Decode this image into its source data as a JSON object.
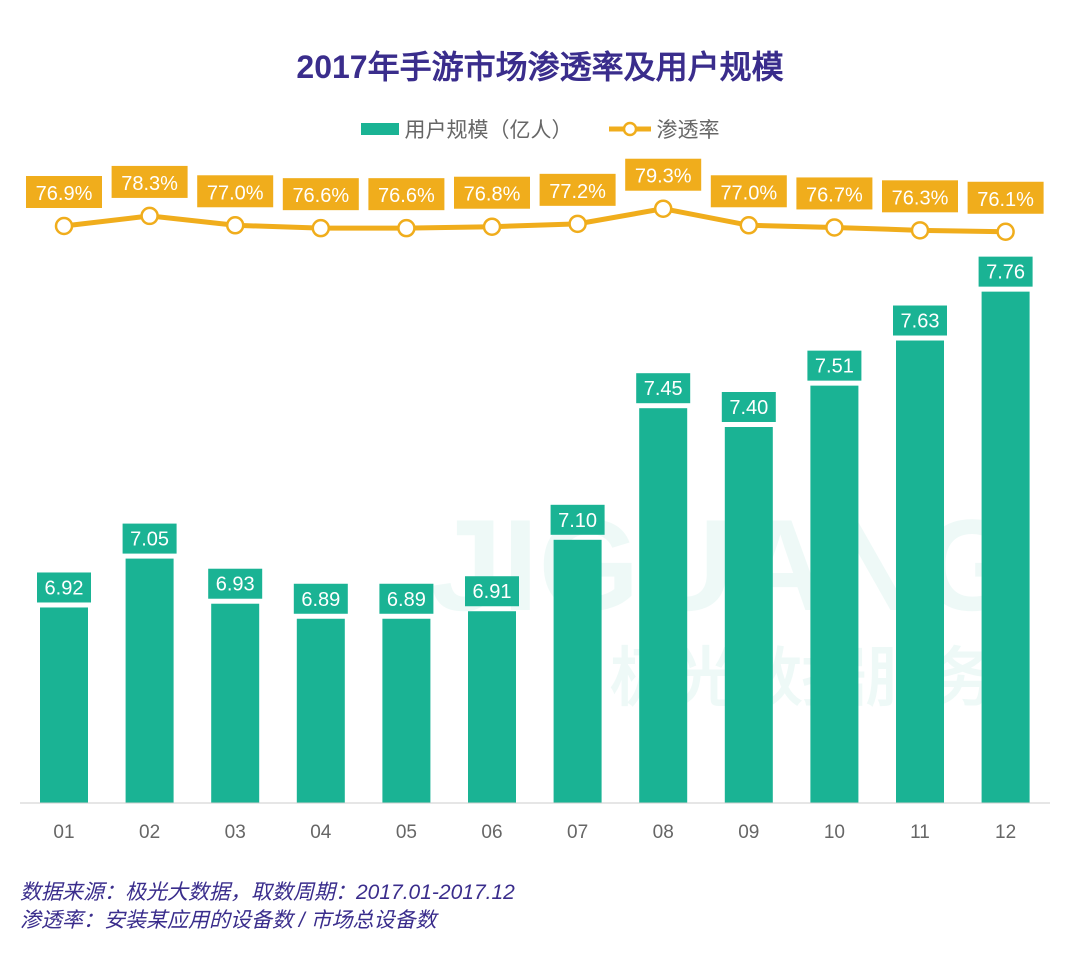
{
  "chart_data": {
    "type": "bar+line",
    "title": "2017年手游市场渗透率及用户规模",
    "categories": [
      "01",
      "02",
      "03",
      "04",
      "05",
      "06",
      "07",
      "08",
      "09",
      "10",
      "11",
      "12"
    ],
    "series": [
      {
        "name": "用户规模（亿人）",
        "type": "bar",
        "color": "#1ab394",
        "values": [
          6.92,
          7.05,
          6.93,
          6.89,
          6.89,
          6.91,
          7.1,
          7.45,
          7.4,
          7.51,
          7.63,
          7.76
        ],
        "labels": [
          "6.92",
          "7.05",
          "6.93",
          "6.89",
          "6.89",
          "6.91",
          "7.10",
          "7.45",
          "7.40",
          "7.51",
          "7.63",
          "7.76"
        ]
      },
      {
        "name": "渗透率",
        "type": "line",
        "color": "#f0ad1c",
        "unit": "%",
        "values": [
          76.9,
          78.3,
          77.0,
          76.6,
          76.6,
          76.8,
          77.2,
          79.3,
          77.0,
          76.7,
          76.3,
          76.1
        ],
        "labels": [
          "76.9%",
          "78.3%",
          "77.0%",
          "76.6%",
          "76.6%",
          "76.8%",
          "77.2%",
          "79.3%",
          "77.0%",
          "76.7%",
          "76.3%",
          "76.1%"
        ]
      }
    ],
    "bar_ylim": [
      6.4,
      7.9
    ],
    "line_ylim": [
      74,
      80
    ],
    "grid": false,
    "legend": "top-center"
  },
  "watermark": {
    "latin": "JIGUANG",
    "cn": "极光数据服务"
  },
  "footnotes": [
    "数据来源：极光大数据，取数周期：2017.01-2017.12",
    "渗透率：安装某应用的设备数 / 市场总设备数"
  ]
}
